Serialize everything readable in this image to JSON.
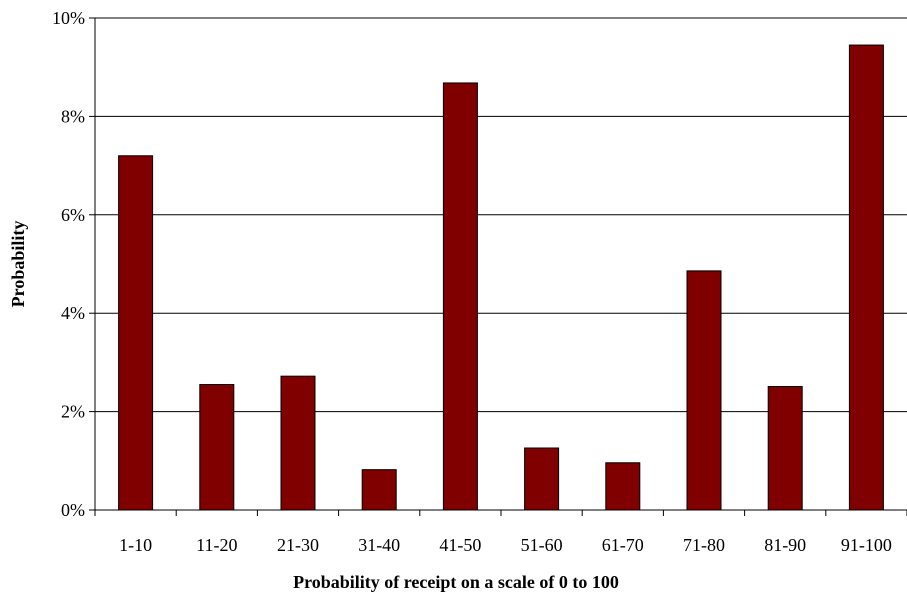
{
  "chart_data": {
    "type": "bar",
    "title": "",
    "xlabel": "Probability of receipt on a scale of 0 to 100",
    "ylabel": "Probability",
    "categories": [
      "1-10",
      "11-20",
      "21-30",
      "31-40",
      "41-50",
      "51-60",
      "61-70",
      "71-80",
      "81-90",
      "91-100"
    ],
    "values": [
      7.2,
      2.55,
      2.72,
      0.82,
      8.68,
      1.26,
      0.96,
      4.86,
      2.51,
      9.45
    ],
    "ylim": [
      0,
      10
    ],
    "yticks": [
      0,
      2,
      4,
      6,
      8,
      10
    ],
    "ytick_labels": [
      "0%",
      "2%",
      "4%",
      "6%",
      "8%",
      "10%"
    ],
    "grid": true,
    "legend": "none",
    "bar_color": "#800000"
  }
}
